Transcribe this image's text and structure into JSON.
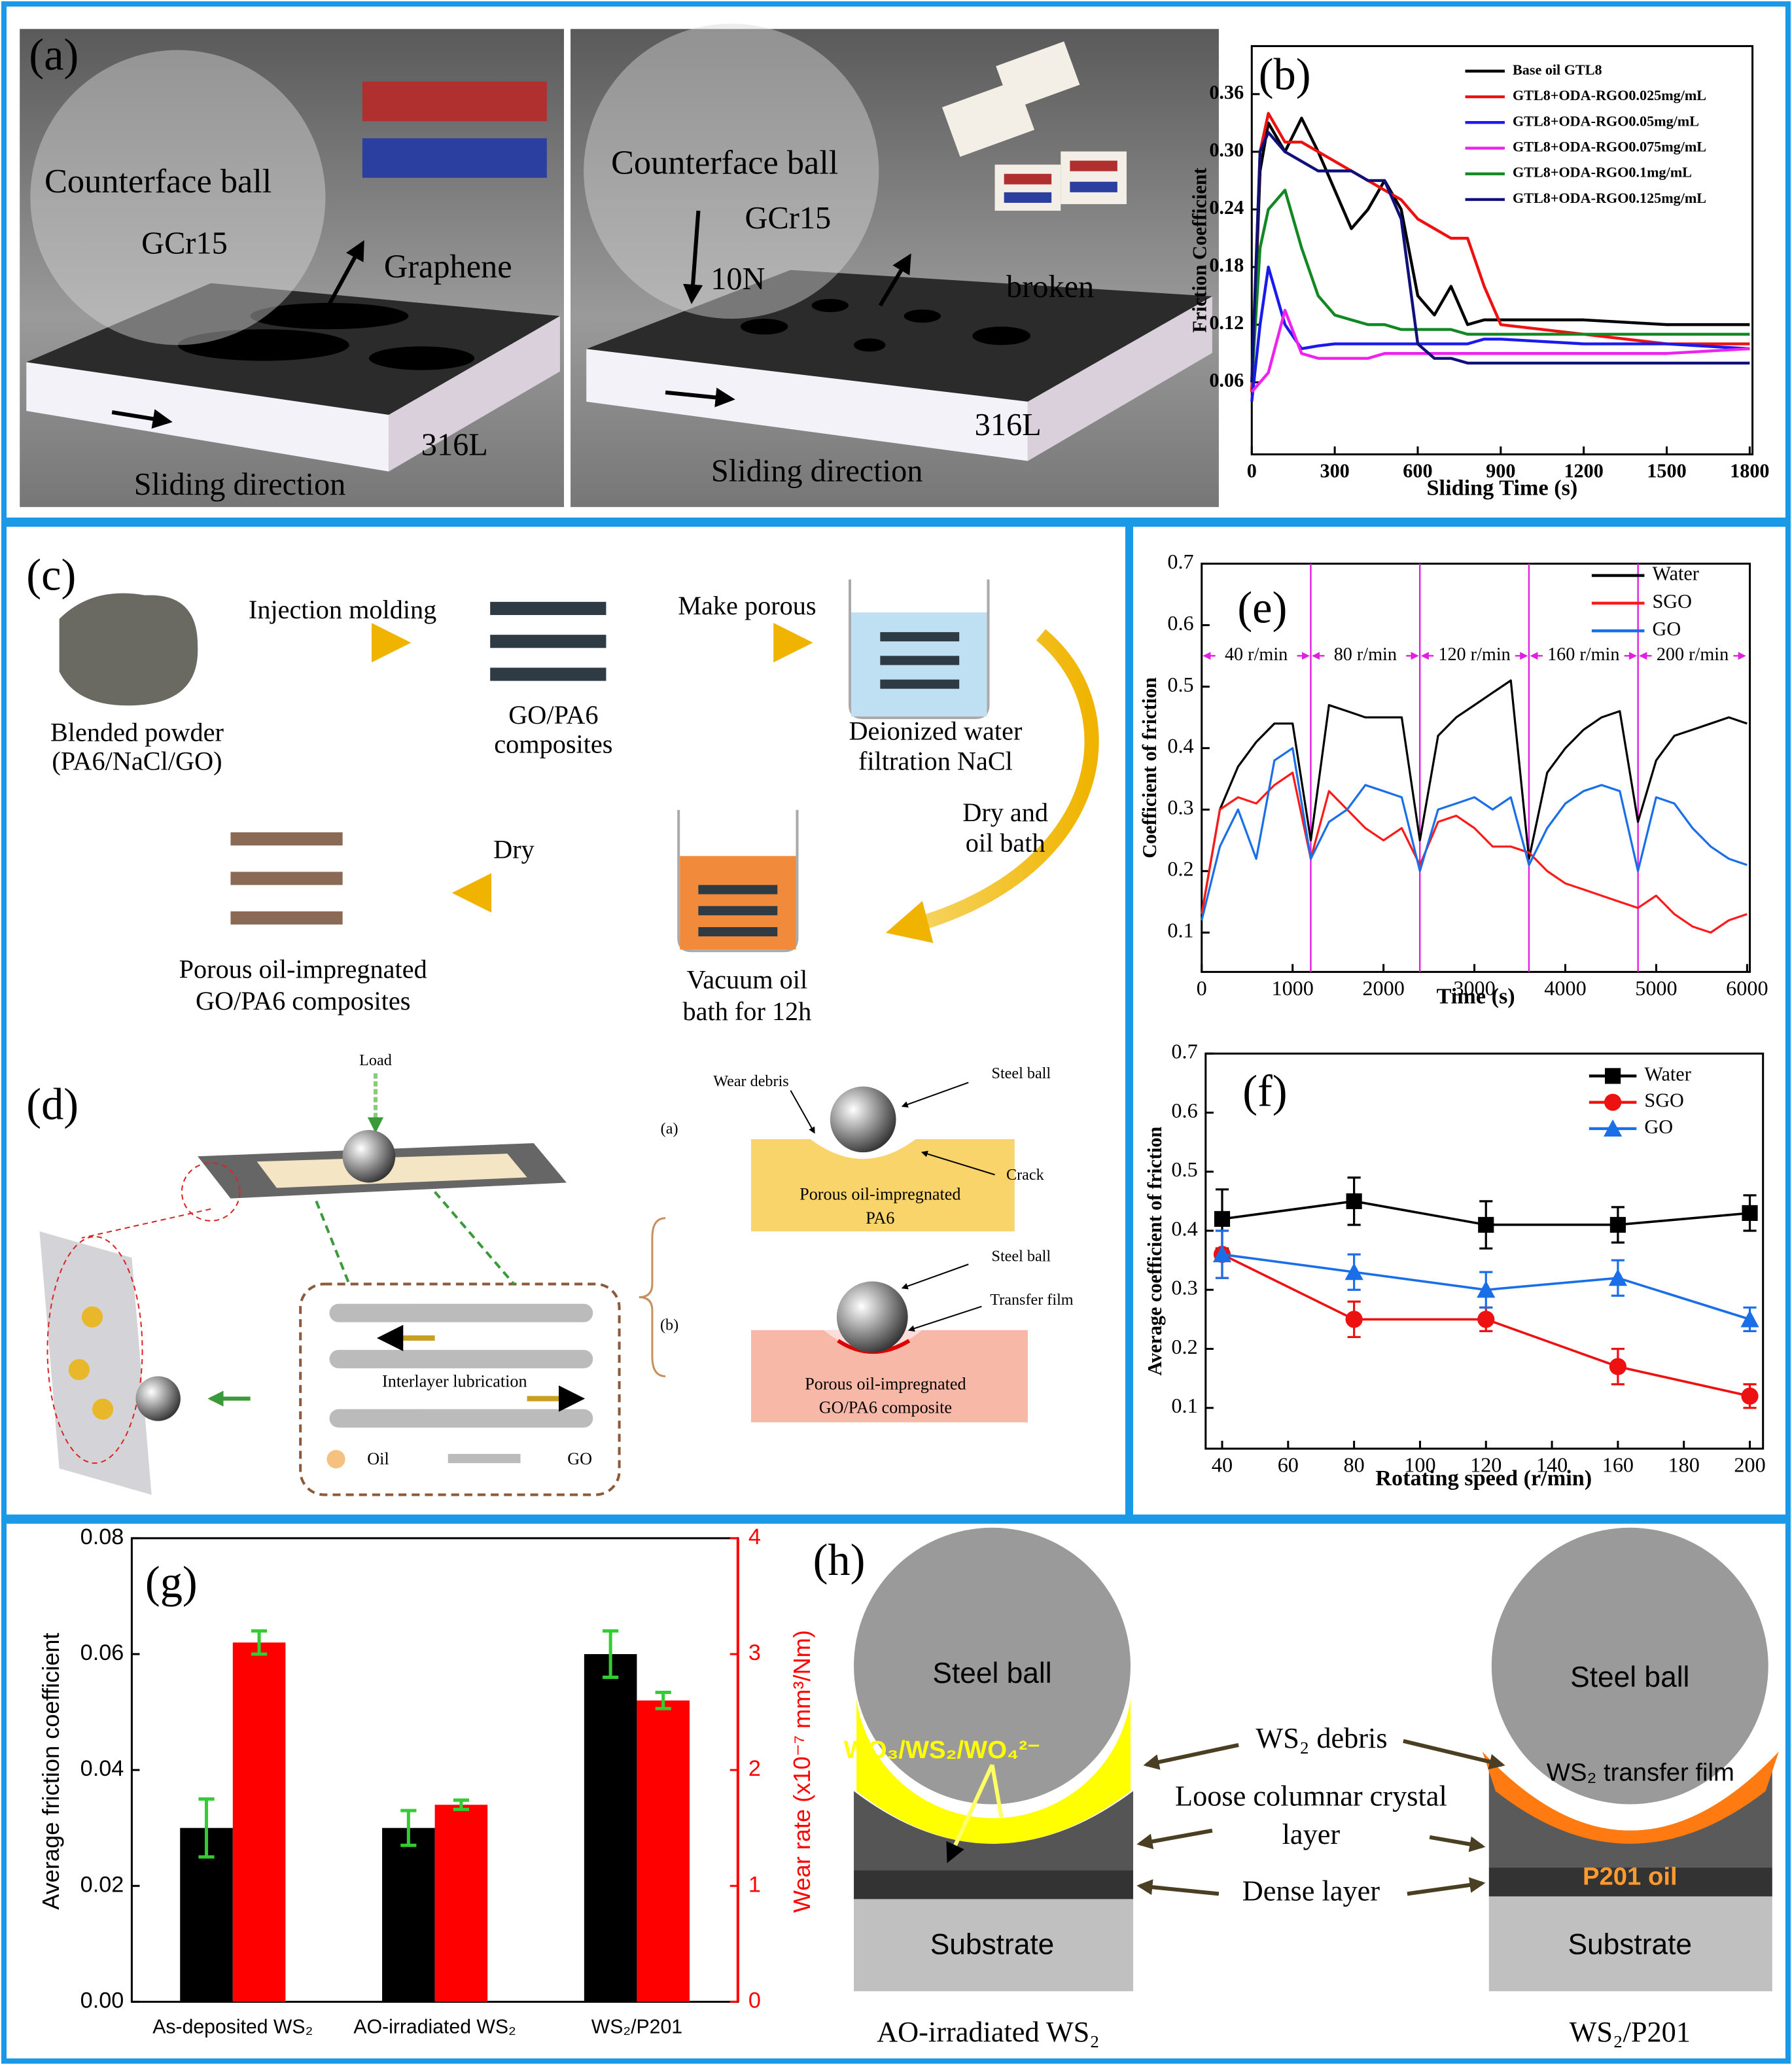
{
  "chart_data": [
    {
      "type": "line",
      "label": "(b)",
      "x_label": "Sliding Time (s)",
      "y_label": "Friction Coefficient",
      "x": [
        0,
        30,
        60,
        120,
        180,
        240,
        300,
        360,
        420,
        480,
        540,
        600,
        660,
        720,
        780,
        840,
        900,
        1200,
        1500,
        1800
      ],
      "series": [
        {
          "name": "Base oil GTL8",
          "color": "#000000",
          "values": [
            0.05,
            0.28,
            0.33,
            0.3,
            0.335,
            0.3,
            0.26,
            0.22,
            0.24,
            0.27,
            0.24,
            0.15,
            0.13,
            0.16,
            0.12,
            0.125,
            0.125,
            0.125,
            0.12,
            0.12
          ]
        },
        {
          "name": "GTL8+ODA-RGO0.025mg/mL",
          "color": "#ee1111",
          "values": [
            0.05,
            0.3,
            0.34,
            0.31,
            0.31,
            0.3,
            0.29,
            0.28,
            0.27,
            0.26,
            0.25,
            0.23,
            0.22,
            0.21,
            0.21,
            0.16,
            0.12,
            0.11,
            0.1,
            0.1
          ]
        },
        {
          "name": "GTL8+ODA-RGO0.05mg/mL",
          "color": "#1a1aee",
          "values": [
            0.04,
            0.12,
            0.18,
            0.12,
            0.095,
            0.098,
            0.1,
            0.1,
            0.1,
            0.1,
            0.1,
            0.1,
            0.1,
            0.1,
            0.1,
            0.105,
            0.105,
            0.1,
            0.1,
            0.095
          ]
        },
        {
          "name": "GTL8+ODA-RGO0.075mg/mL",
          "color": "#ee22ee",
          "values": [
            0.05,
            0.06,
            0.07,
            0.135,
            0.09,
            0.085,
            0.085,
            0.085,
            0.085,
            0.09,
            0.09,
            0.09,
            0.09,
            0.09,
            0.09,
            0.09,
            0.09,
            0.09,
            0.09,
            0.095
          ]
        },
        {
          "name": "GTL8+ODA-RGO0.1mg/mL",
          "color": "#118822",
          "values": [
            0.06,
            0.2,
            0.24,
            0.26,
            0.2,
            0.15,
            0.13,
            0.125,
            0.12,
            0.12,
            0.115,
            0.115,
            0.115,
            0.115,
            0.11,
            0.11,
            0.11,
            0.11,
            0.11,
            0.11
          ]
        },
        {
          "name": "GTL8+ODA-RGO0.125mg/mL",
          "color": "#10107a",
          "values": [
            0.06,
            0.3,
            0.32,
            0.3,
            0.29,
            0.28,
            0.28,
            0.28,
            0.27,
            0.27,
            0.23,
            0.1,
            0.085,
            0.085,
            0.08,
            0.08,
            0.08,
            0.08,
            0.08,
            0.08
          ]
        }
      ],
      "xlim": [
        0,
        1810
      ],
      "xticks": [
        0,
        300,
        600,
        900,
        1200,
        1500,
        1800
      ],
      "ylim": [
        -0.015,
        0.41
      ],
      "yticks": [
        0.06,
        0.12,
        0.18,
        0.24,
        {
          "value": 0.3,
          "label": "0.30"
        },
        0.36
      ],
      "legend": "upper right"
    },
    {
      "type": "line",
      "label": "(e)",
      "x_label": "Time (s)",
      "y_label": "Coefficient of friction",
      "x": [
        0,
        200,
        400,
        600,
        800,
        1000,
        1200,
        1400,
        1600,
        1800,
        2000,
        2200,
        2400,
        2600,
        2800,
        3000,
        3200,
        3400,
        3600,
        3800,
        4000,
        4200,
        4400,
        4600,
        4800,
        5000,
        5200,
        5400,
        5600,
        5800,
        6000
      ],
      "series": [
        {
          "name": "Water",
          "color": "#000000",
          "values": [
            0.13,
            0.3,
            0.37,
            0.41,
            0.44,
            0.44,
            0.25,
            0.47,
            0.46,
            0.45,
            0.45,
            0.45,
            0.25,
            0.42,
            0.45,
            0.47,
            0.49,
            0.51,
            0.22,
            0.36,
            0.4,
            0.43,
            0.45,
            0.46,
            0.28,
            0.38,
            0.42,
            0.43,
            0.44,
            0.45,
            0.44
          ]
        },
        {
          "name": "SGO",
          "color": "#ff1a1a",
          "values": [
            0.13,
            0.3,
            0.32,
            0.31,
            0.34,
            0.36,
            0.22,
            0.33,
            0.3,
            0.27,
            0.25,
            0.27,
            0.21,
            0.28,
            0.29,
            0.27,
            0.24,
            0.24,
            0.23,
            0.2,
            0.18,
            0.17,
            0.16,
            0.15,
            0.14,
            0.16,
            0.13,
            0.11,
            0.1,
            0.12,
            0.13
          ]
        },
        {
          "name": "GO",
          "color": "#1a6fe8",
          "values": [
            0.12,
            0.24,
            0.3,
            0.22,
            0.38,
            0.4,
            0.22,
            0.28,
            0.3,
            0.34,
            0.33,
            0.32,
            0.2,
            0.3,
            0.31,
            0.32,
            0.3,
            0.32,
            0.21,
            0.27,
            0.31,
            0.33,
            0.34,
            0.33,
            0.2,
            0.32,
            0.31,
            0.27,
            0.24,
            0.22,
            0.21
          ]
        }
      ],
      "segments": [
        {
          "label": "40 r/min",
          "start": 0,
          "end": 1200
        },
        {
          "label": "80 r/min",
          "start": 1200,
          "end": 2400
        },
        {
          "label": "120 r/min",
          "start": 2400,
          "end": 3600
        },
        {
          "label": "160 r/min",
          "start": 3600,
          "end": 4800
        },
        {
          "label": "200 r/min",
          "start": 4800,
          "end": 6000
        }
      ],
      "segment_color": "#e020e0",
      "xlim": [
        0,
        6030
      ],
      "xticks": [
        0,
        1000,
        2000,
        3000,
        4000,
        5000,
        6000
      ],
      "ylim": [
        0.036,
        0.7
      ],
      "yticks": [
        0.1,
        0.2,
        0.3,
        0.4,
        0.5,
        0.6,
        0.7
      ],
      "legend": "upper right"
    },
    {
      "type": "errorbar",
      "label": "(f)",
      "x_label": "Rotating speed (r/min)",
      "y_label": "Average coefficient of friction",
      "x": [
        40,
        80,
        120,
        160,
        200
      ],
      "series": [
        {
          "name": "Water",
          "color": "#000000",
          "marker": "square",
          "values": [
            0.42,
            0.45,
            0.41,
            0.41,
            0.43
          ],
          "errors": [
            0.05,
            0.04,
            0.04,
            0.03,
            0.03
          ]
        },
        {
          "name": "SGO",
          "color": "#ee1111",
          "marker": "circle",
          "values": [
            0.36,
            0.25,
            0.25,
            0.17,
            0.12
          ],
          "errors": [
            0.04,
            0.03,
            0.02,
            0.03,
            0.02
          ]
        },
        {
          "name": "GO",
          "color": "#1a6fe8",
          "marker": "triangle",
          "values": [
            0.36,
            0.33,
            0.3,
            0.32,
            0.25
          ],
          "errors": [
            0.04,
            0.03,
            0.03,
            0.03,
            0.02
          ]
        }
      ],
      "xlim": [
        35,
        204
      ],
      "xticks": [
        40,
        60,
        80,
        100,
        120,
        140,
        160,
        180,
        200
      ],
      "ylim": [
        0.031,
        0.7
      ],
      "yticks": [
        0.1,
        0.2,
        0.3,
        0.4,
        0.5,
        0.6,
        0.7
      ],
      "legend": "upper right"
    },
    {
      "type": "bar",
      "label": "(g)",
      "y_label": "Average friction coefficient",
      "y2_label": "Wear rate (x10⁻⁷ mm³/Nm)",
      "categories": [
        "As-deposited WS₂",
        "AO-irradiated WS₂",
        "WS₂/P201"
      ],
      "series": [
        {
          "color": "#000000",
          "values": [
            0.03,
            0.03,
            0.06
          ],
          "errors": [
            0.005,
            0.003,
            0.004
          ]
        },
        {
          "color": "#ff0000",
          "axis": "y2",
          "values": [
            3.1,
            1.7,
            2.6
          ],
          "errors": [
            0.1,
            0.04,
            0.07
          ]
        }
      ],
      "error_color": "#33cc33",
      "ylim": [
        0,
        0.08
      ],
      "yticks": [
        {
          "value": 0,
          "label": "0.00"
        },
        0.02,
        0.04,
        0.06,
        0.08
      ],
      "y2lim": [
        0,
        4
      ],
      "y2ticks": [
        0,
        1,
        2,
        3,
        4
      ]
    }
  ],
  "panel_a": {
    "label": "(a)",
    "left": {
      "ball": "Counterface ball",
      "ball_material": "GCr15",
      "film": "Graphene",
      "substrate": "316L",
      "direction": "Sliding direction"
    },
    "right": {
      "ball": "Counterface ball",
      "ball_material": "GCr15",
      "load": "10N",
      "film": "broken",
      "substrate": "316L",
      "direction": "Sliding direction"
    }
  },
  "panel_c": {
    "label": "(c)",
    "powder": [
      "Blended powder",
      "(PA6/NaCl/GO)"
    ],
    "step1": "Injection molding",
    "composite": [
      "GO/PA6",
      "composites"
    ],
    "step2": "Make porous",
    "water": [
      "Deionized water",
      "filtration NaCl"
    ],
    "step3": [
      "Dry and",
      "oil bath"
    ],
    "vacuum": [
      "Vacuum oil",
      "bath for 12h"
    ],
    "step4": "Dry",
    "product": [
      "Porous oil-impregnated",
      "GO/PA6 composites"
    ]
  },
  "panel_d": {
    "label": "(d)",
    "load": "Load",
    "interlayer": "Interlayer lubrication",
    "oil": "Oil",
    "go": "GO",
    "case_a": {
      "tag": "(a)",
      "debris": "Wear debris",
      "ball": "Steel ball",
      "crack": "Crack",
      "substrate": [
        "Porous oil-impregnated",
        "PA6"
      ]
    },
    "case_b": {
      "tag": "(b)",
      "ball": "Steel ball",
      "film": "Transfer film",
      "substrate": [
        "Porous oil-impregnated",
        "GO/PA6 composite"
      ]
    }
  },
  "panel_h": {
    "label": "(h)",
    "left": {
      "ball": "Steel ball",
      "oxides": "WO₃/WS₂/WO₄²⁻",
      "substrate": "Substrate",
      "caption": "AO-irradiated WS₂"
    },
    "middle": {
      "debris": "WS₂ debris",
      "loose": [
        "Loose columnar crystal",
        "layer"
      ],
      "dense": "Dense layer"
    },
    "right": {
      "ball": "Steel ball",
      "film": "WS₂ transfer film",
      "oil": "P201 oil",
      "substrate": "Substrate",
      "caption": "WS₂/P201"
    }
  }
}
